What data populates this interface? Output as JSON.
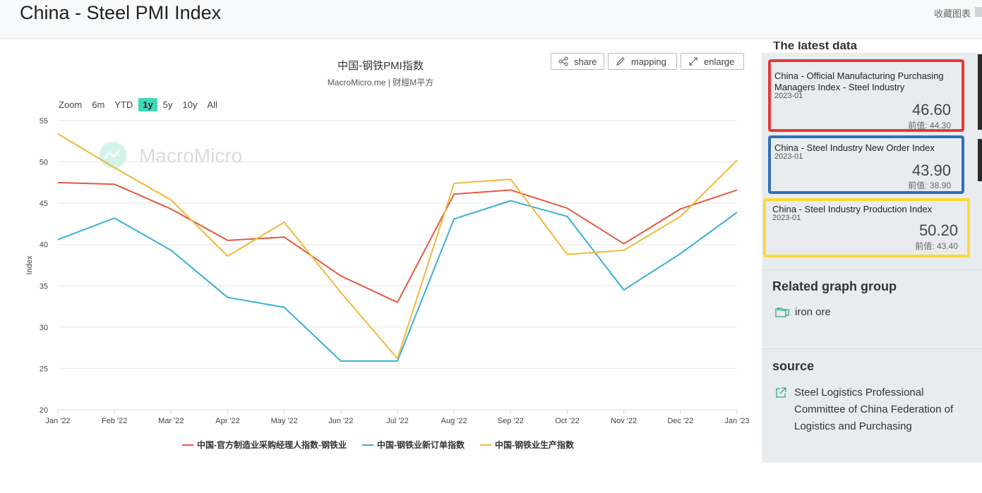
{
  "header": {
    "title": "China - Steel PMI Index",
    "favorite_label": "收藏图表"
  },
  "toolbar": {
    "share": "share",
    "mapping": "mapping",
    "enlarge": "enlarge"
  },
  "zoom": {
    "label": "Zoom",
    "options": [
      "6m",
      "YTD",
      "1y",
      "5y",
      "10y",
      "All"
    ],
    "active": "1y"
  },
  "watermark": "MacroMicro",
  "chart_data": {
    "type": "line",
    "title": "中国-钢铁PMI指数",
    "subtitle": "MacroMicro.me | 财經M平方",
    "ylabel": "Index",
    "ylim": [
      20,
      55
    ],
    "yticks": [
      20,
      25,
      30,
      35,
      40,
      45,
      50,
      55
    ],
    "categories": [
      "Jan '22",
      "Feb '22",
      "Mar '22",
      "Apr '22",
      "May '22",
      "Jun '22",
      "Jul '22",
      "Aug '22",
      "Sep '22",
      "Oct '22",
      "Nov '22",
      "Dec '22",
      "Jan '23"
    ],
    "series": [
      {
        "name": "中国-官方制造业采购经理人指数-钢铁业",
        "color": "#e35a3d",
        "values": [
          47.5,
          47.3,
          44.3,
          40.5,
          40.9,
          36.2,
          33.0,
          46.1,
          46.6,
          44.4,
          40.1,
          44.3,
          46.6
        ]
      },
      {
        "name": "中国-钢铁业新订单指数",
        "color": "#3ab0d4",
        "values": [
          40.6,
          43.2,
          39.3,
          33.6,
          32.4,
          25.9,
          25.9,
          43.1,
          45.3,
          43.4,
          34.5,
          38.9,
          43.9
        ]
      },
      {
        "name": "中国-钢铁业生产指数",
        "color": "#f0b93a",
        "values": [
          53.4,
          49.3,
          45.4,
          38.6,
          42.7,
          34.2,
          26.2,
          47.4,
          47.9,
          38.8,
          39.3,
          43.4,
          50.2
        ]
      }
    ]
  },
  "sidebar": {
    "latest_title": "The latest data",
    "cards": [
      {
        "title": "China - Official Manufacturing Purchasing Managers Index - Steel Industry",
        "date": "2023-01",
        "value": "46.60",
        "prev": "前值: 44.30",
        "border": "#e53935"
      },
      {
        "title": "China - Steel Industry New Order Index",
        "date": "2023-01",
        "value": "43.90",
        "prev": "前值: 38.90",
        "border": "#2f6fb8"
      },
      {
        "title": "China - Steel Industry Production Index",
        "date": "2023-01",
        "value": "50.20",
        "prev": "前值: 43.40",
        "border": "#fdd835"
      }
    ],
    "related_title": "Related graph group",
    "related_link": "iron ore",
    "source_title": "source",
    "source_text": "Steel Logistics Professional Committee of China Federation of Logistics and Purchasing"
  }
}
